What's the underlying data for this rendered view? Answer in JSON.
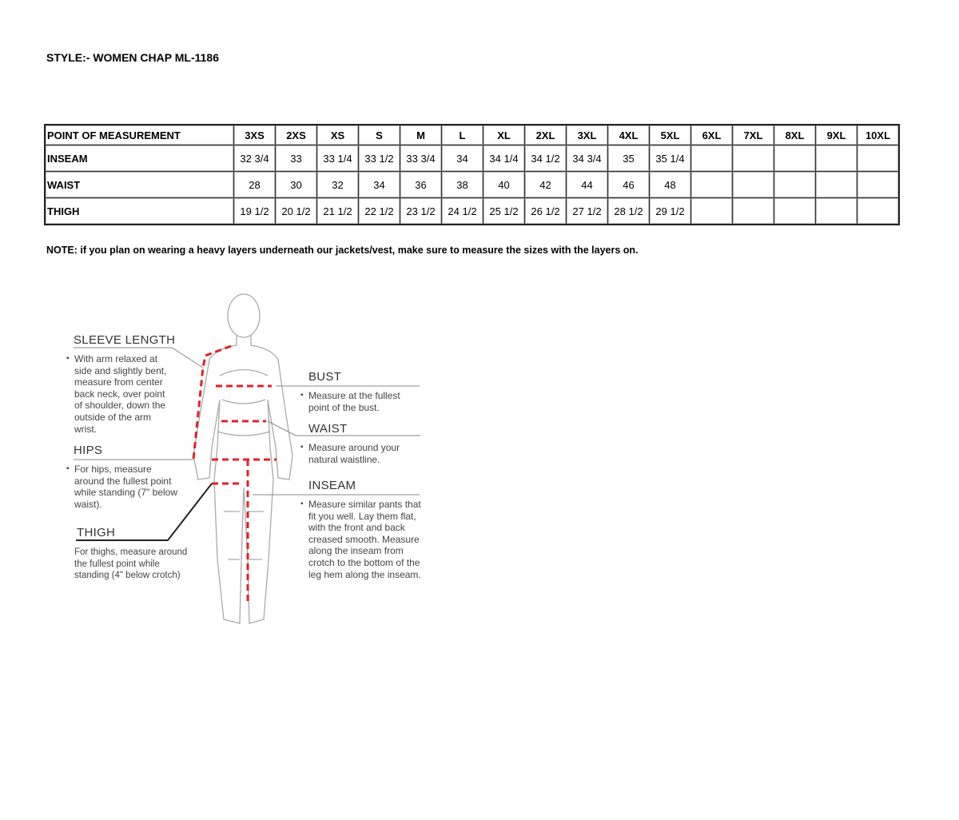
{
  "title": "STYLE:- WOMEN CHAP ML-1186",
  "table": {
    "headers": [
      "POINT OF MEASUREMENT",
      "3XS",
      "2XS",
      "XS",
      "S",
      "M",
      "L",
      "XL",
      "2XL",
      "3XL",
      "4XL",
      "5XL",
      "6XL",
      "7XL",
      "8XL",
      "9XL",
      "10XL"
    ],
    "rows": [
      {
        "label": "INSEAM",
        "values": [
          "32 3/4",
          "33",
          "33 1/4",
          "33 1/2",
          "33 3/4",
          "34",
          "34 1/4",
          "34 1/2",
          "34 3/4",
          "35",
          "35 1/4",
          "",
          "",
          "",
          "",
          ""
        ]
      },
      {
        "label": "WAIST",
        "values": [
          "28",
          "30",
          "32",
          "34",
          "36",
          "38",
          "40",
          "42",
          "44",
          "46",
          "48",
          "",
          "",
          "",
          "",
          ""
        ]
      },
      {
        "label": "THIGH",
        "values": [
          "19 1/2",
          "20 1/2",
          "21 1/2",
          "22 1/2",
          "23 1/2",
          "24 1/2",
          "25 1/2",
          "26 1/2",
          "27 1/2",
          "28 1/2",
          "29 1/2",
          "",
          "",
          "",
          "",
          ""
        ]
      }
    ]
  },
  "note": "NOTE: if you plan on wearing a heavy layers underneath our jackets/vest, make sure to measure the sizes with the layers on.",
  "figure": {
    "sleeve": {
      "heading": "SLEEVE LENGTH",
      "text": "With arm relaxed at side and slightly bent, measure from center back neck, over point of shoulder, down the outside of the arm wrist."
    },
    "hips": {
      "heading": "HIPS",
      "text": "For hips, measure around the fullest point while standing (7\" below waist)."
    },
    "thigh": {
      "heading": "THIGH",
      "text": "For thighs, measure around the fullest point while standing (4\" below crotch)"
    },
    "bust": {
      "heading": "BUST",
      "text": "Measure at the fullest point of the bust."
    },
    "waist": {
      "heading": "WAIST",
      "text": "Measure around your natural waistline."
    },
    "inseam": {
      "heading": "INSEAM",
      "text": "Measure similar pants that fit you well. Lay them flat, with the front and back creased smooth. Measure along the inseam from crotch to the bottom of the leg hem along the inseam."
    },
    "measure_color": "#e0202a"
  }
}
